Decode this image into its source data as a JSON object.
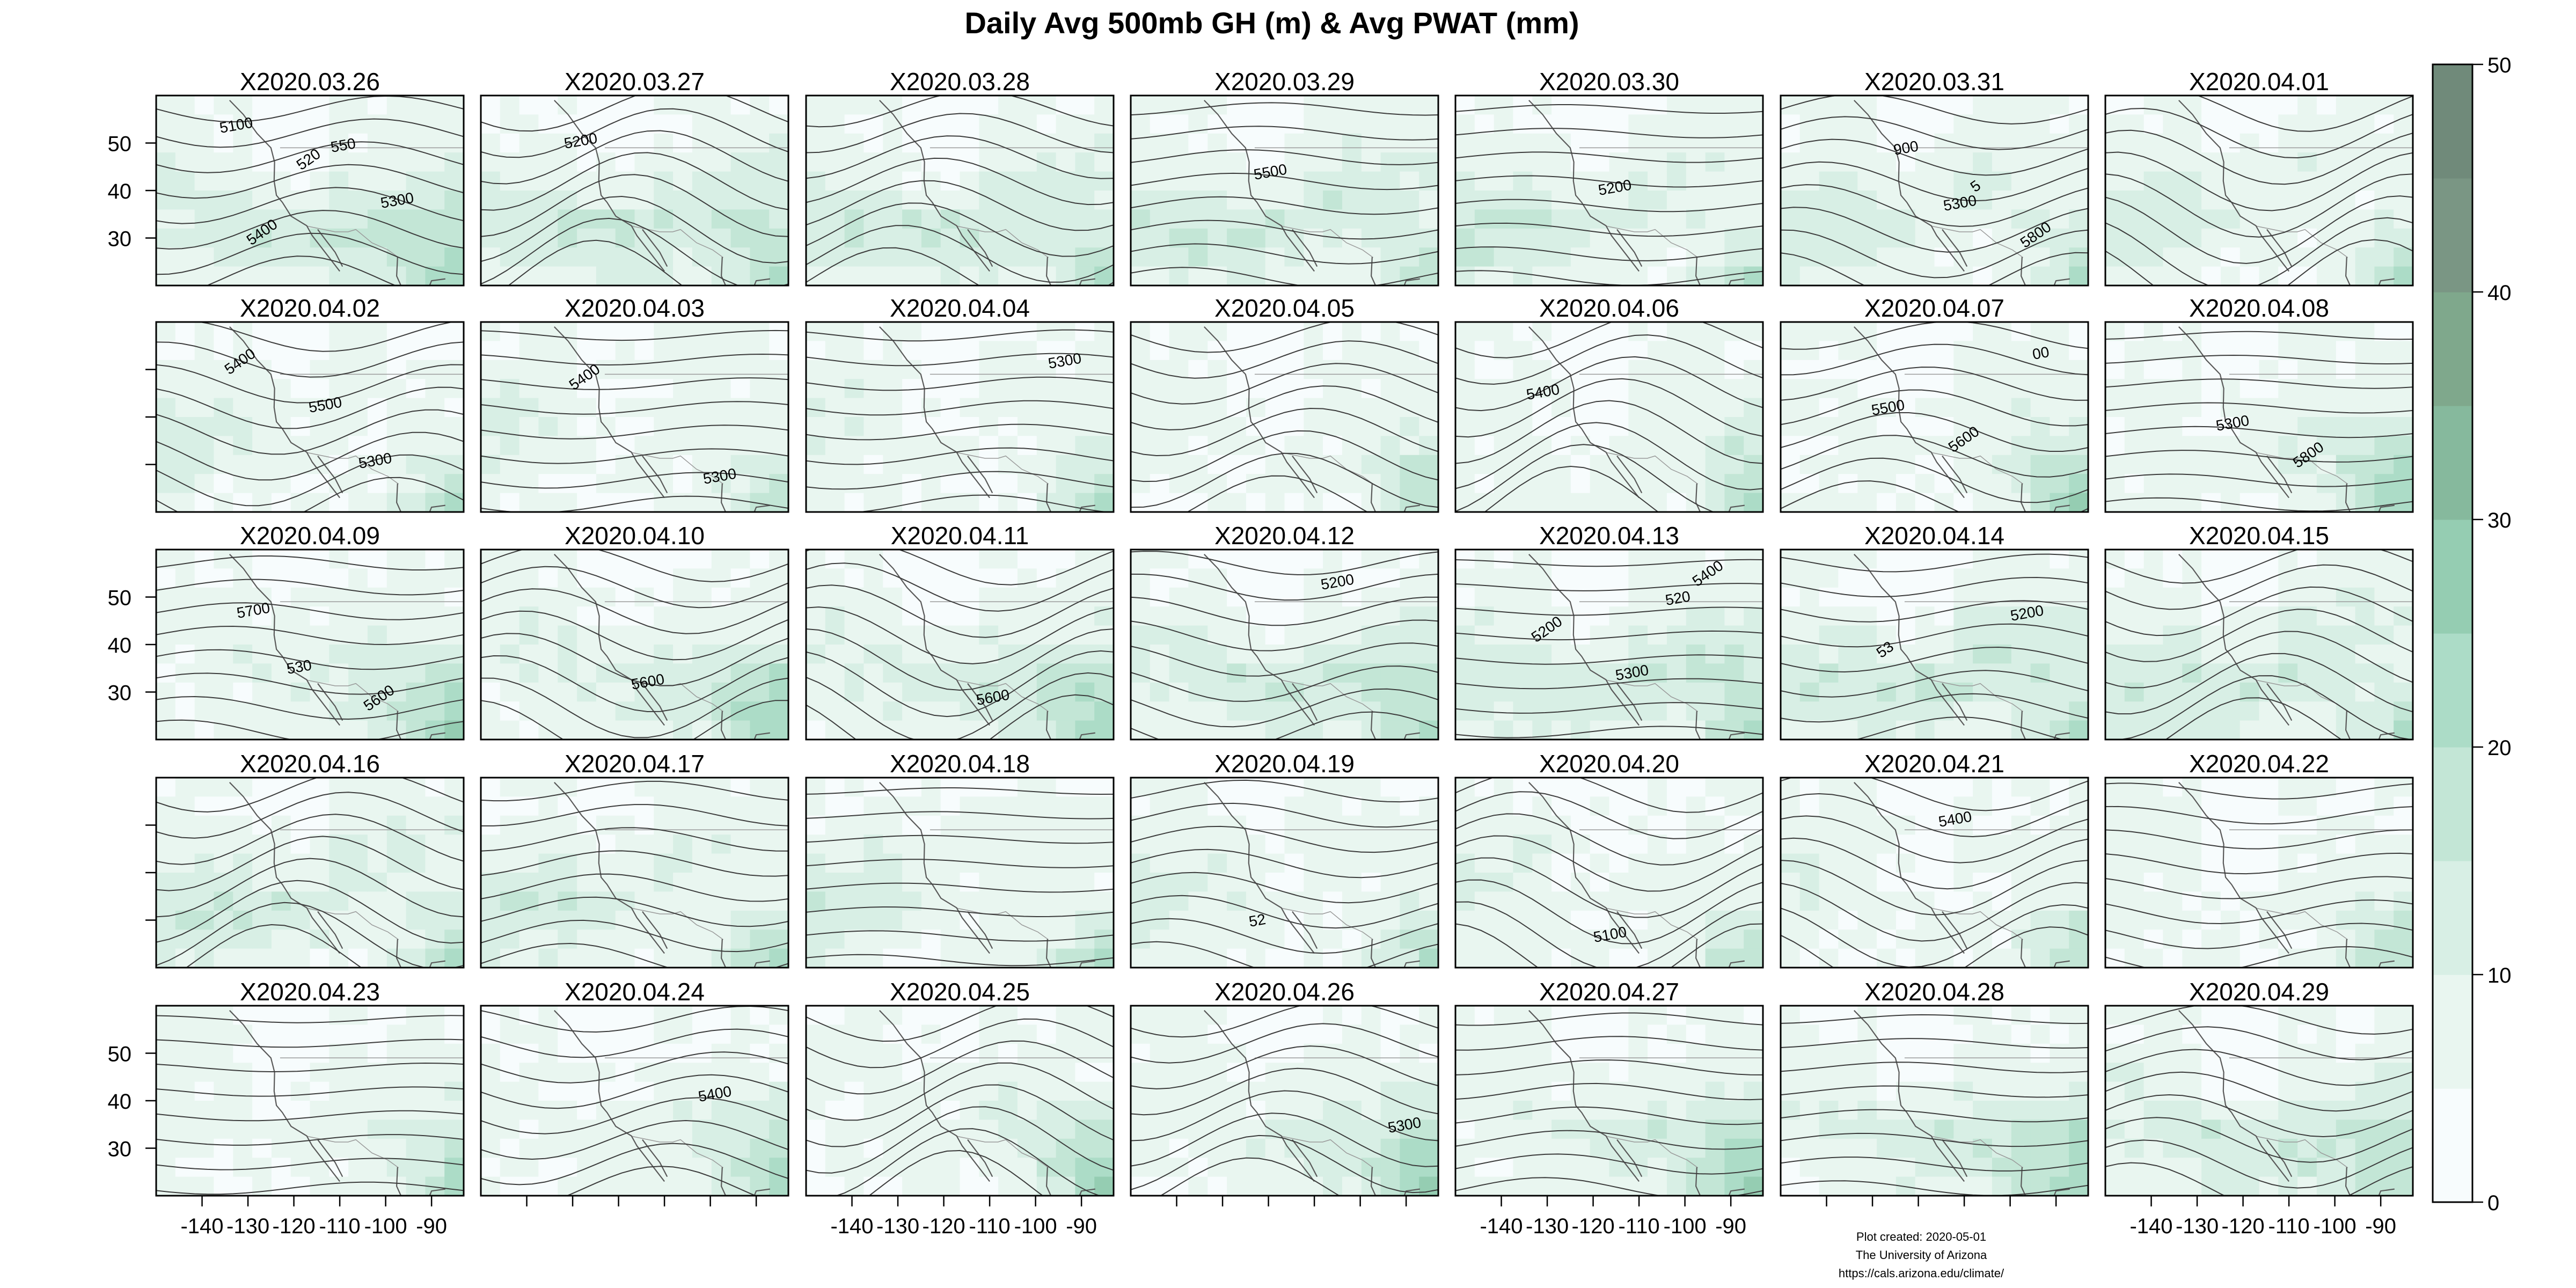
{
  "figure": {
    "title": "Daily Avg 500mb GH (m) & Avg PWAT (mm)",
    "credits": [
      "Plot created: 2020-05-01",
      "The University of Arizona",
      "https://cals.arizona.edu/climate/"
    ]
  },
  "colors": {
    "pwat_ramp": [
      "#f7fcfd",
      "#e9f6f0",
      "#d8efe5",
      "#c3e6d6",
      "#acdcc7",
      "#95cdb2",
      "#86b99d",
      "#7fa88c",
      "#7a9684",
      "#708a7a"
    ],
    "contour": "#3c3c3c",
    "border": "#9a9a9a",
    "coast": "#5a5a5a"
  },
  "chart_data": {
    "type": "heatmap",
    "layout": "5 rows x 7 columns small multiples",
    "panel_titles": [
      "X2020.03.26",
      "X2020.03.27",
      "X2020.03.28",
      "X2020.03.29",
      "X2020.03.30",
      "X2020.03.31",
      "X2020.04.01",
      "X2020.04.02",
      "X2020.04.03",
      "X2020.04.04",
      "X2020.04.05",
      "X2020.04.06",
      "X2020.04.07",
      "X2020.04.08",
      "X2020.04.09",
      "X2020.04.10",
      "X2020.04.11",
      "X2020.04.12",
      "X2020.04.13",
      "X2020.04.14",
      "X2020.04.15",
      "X2020.04.16",
      "X2020.04.17",
      "X2020.04.18",
      "X2020.04.19",
      "X2020.04.20",
      "X2020.04.21",
      "X2020.04.22",
      "X2020.04.23",
      "X2020.04.24",
      "X2020.04.25",
      "X2020.04.26",
      "X2020.04.27",
      "X2020.04.28",
      "X2020.04.29"
    ],
    "x_axis": {
      "range": [
        -150,
        -83
      ],
      "ticks": [
        -140,
        -130,
        -120,
        -110,
        -100,
        -90
      ],
      "tick_labels": [
        "-140",
        "-130",
        "-120",
        "-110",
        "-100",
        "-90"
      ],
      "labeled_columns": [
        0,
        2,
        4,
        6
      ]
    },
    "y_axis": {
      "range": [
        20,
        60
      ],
      "ticks": [
        30,
        40,
        50
      ],
      "tick_labels": [
        "30",
        "40",
        "50"
      ],
      "labeled_rows": [
        0,
        2,
        4
      ]
    },
    "colorbar": {
      "range": [
        0,
        50
      ],
      "ticks": [
        0,
        10,
        20,
        30,
        40,
        50
      ],
      "tick_labels": [
        "0",
        "10",
        "20",
        "30",
        "40",
        "50"
      ]
    },
    "contour_labels": [
      {
        "panel": 0,
        "items": [
          "5100",
          "520",
          "5300",
          "5400",
          "550"
        ]
      },
      {
        "panel": 1,
        "items": [
          "5200"
        ]
      },
      {
        "panel": 3,
        "items": [
          "5500"
        ]
      },
      {
        "panel": 4,
        "items": [
          "5200"
        ]
      },
      {
        "panel": 5,
        "items": [
          "5300",
          "5800",
          "900",
          "5"
        ]
      },
      {
        "panel": 7,
        "items": [
          "5300",
          "5400",
          "5500"
        ]
      },
      {
        "panel": 8,
        "items": [
          "5300",
          "5400"
        ]
      },
      {
        "panel": 9,
        "items": [
          "5300"
        ]
      },
      {
        "panel": 11,
        "items": [
          "5400"
        ]
      },
      {
        "panel": 12,
        "items": [
          "5500",
          "5600",
          "00"
        ]
      },
      {
        "panel": 13,
        "items": [
          "5300",
          "5800"
        ]
      },
      {
        "panel": 14,
        "items": [
          "530",
          "5600",
          "5700"
        ]
      },
      {
        "panel": 15,
        "items": [
          "5600"
        ]
      },
      {
        "panel": 16,
        "items": [
          "5600"
        ]
      },
      {
        "panel": 17,
        "items": [
          "5200"
        ]
      },
      {
        "panel": 18,
        "items": [
          "520",
          "5200",
          "5300",
          "5400"
        ]
      },
      {
        "panel": 19,
        "items": [
          "5200",
          "53"
        ]
      },
      {
        "panel": 24,
        "items": [
          "52"
        ]
      },
      {
        "panel": 25,
        "items": [
          "5100"
        ]
      },
      {
        "panel": 26,
        "items": [
          "5400"
        ]
      },
      {
        "panel": 29,
        "items": [
          "5400"
        ]
      },
      {
        "panel": 31,
        "items": [
          "5300"
        ]
      }
    ]
  }
}
